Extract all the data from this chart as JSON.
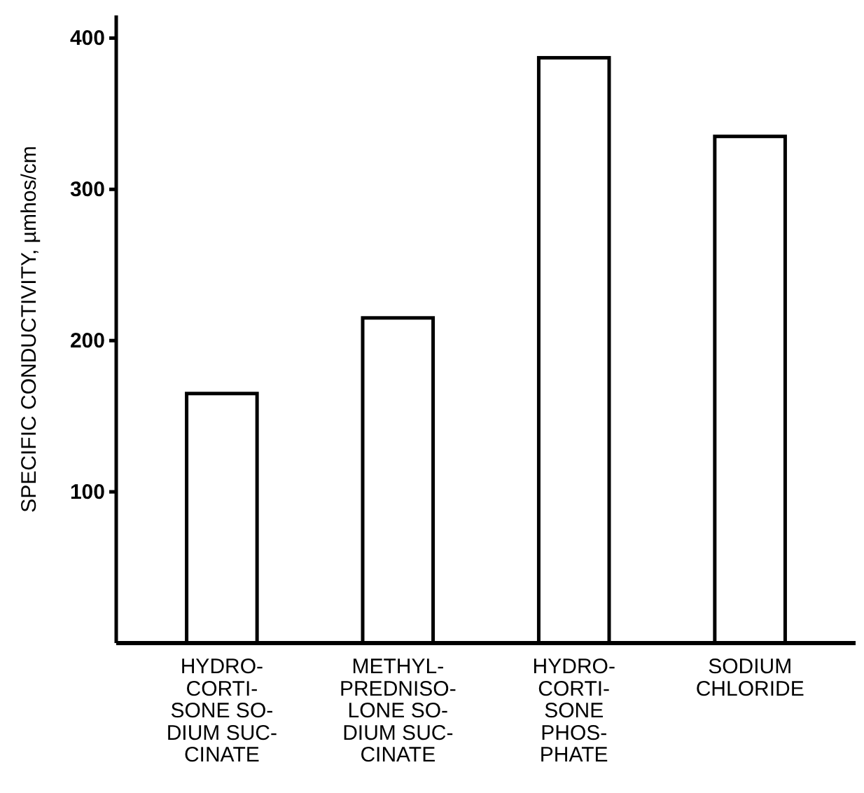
{
  "chart_data": {
    "type": "bar",
    "categories": [
      "HYDRO-\nCORTI-\nSONE SO-\nDIUM SUC-\nCINATE",
      "METHYL-\nPREDNISO-\nLONE SO-\nDIUM SUC-\nCINATE",
      "HYDRO-\nCORTI-\nSONE\nPHOS-\nPHATE",
      "SODIUM\nCHLORIDE"
    ],
    "values": [
      165,
      215,
      387,
      335
    ],
    "color": "#ffffff",
    "ylabel": "SPECIFIC CONDUCTIVITY, µmhos/cm",
    "ylim": [
      0,
      415
    ],
    "yticks": [
      100,
      200,
      300,
      400
    ],
    "grid": false
  }
}
